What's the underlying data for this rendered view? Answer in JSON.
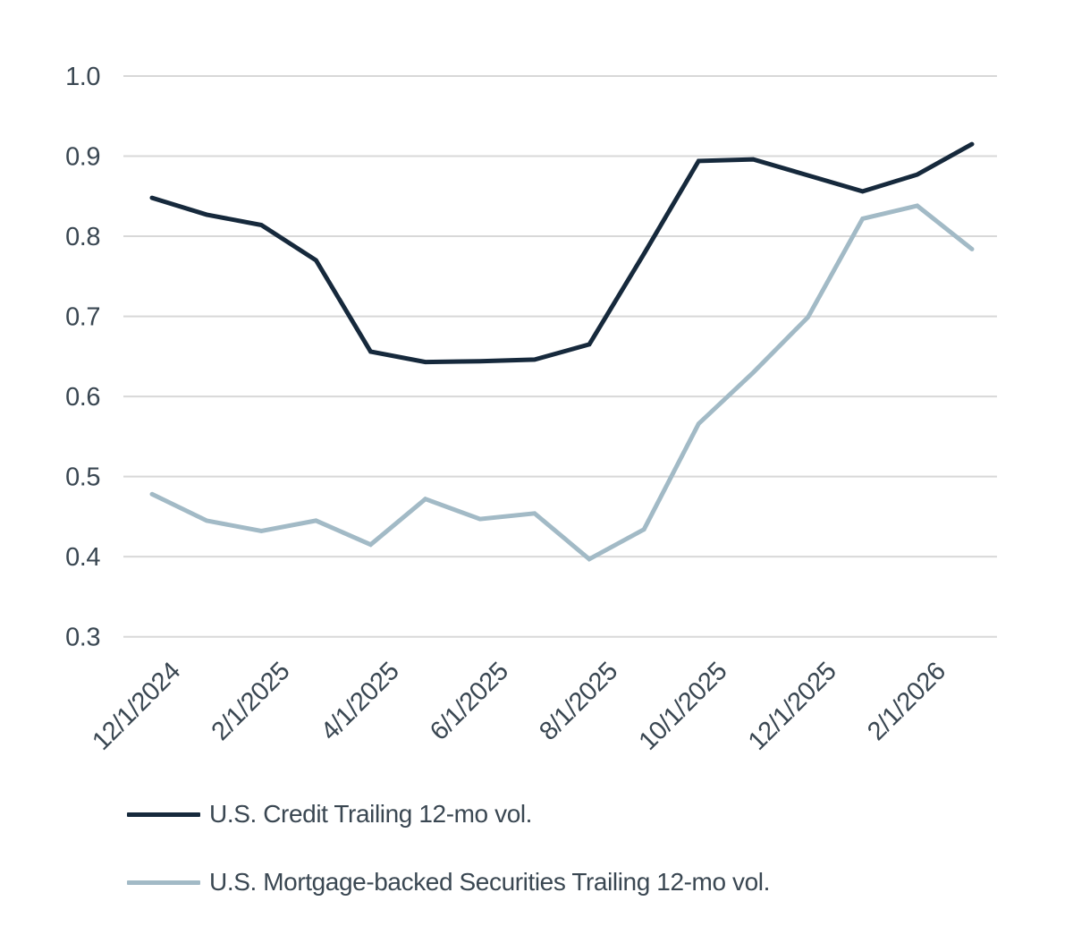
{
  "chart_data": {
    "type": "line",
    "title": "",
    "xlabel": "",
    "ylabel": "",
    "categories": [
      "12/1/2024",
      "1/1/2025",
      "2/1/2025",
      "3/1/2025",
      "4/1/2025",
      "5/1/2025",
      "6/1/2025",
      "7/1/2025",
      "8/1/2025",
      "9/1/2025",
      "10/1/2025",
      "11/1/2025",
      "12/1/2025",
      "1/1/2026",
      "2/1/2026",
      "3/1/2026"
    ],
    "series": [
      {
        "name": "U.S. Credit Trailing 12-mo vol.",
        "color": "#16293C",
        "values": [
          0.848,
          0.827,
          0.814,
          0.77,
          0.656,
          0.643,
          0.644,
          0.646,
          0.665,
          0.778,
          0.894,
          0.896,
          0.876,
          0.856,
          0.877,
          0.915
        ]
      },
      {
        "name": "U.S. Mortgage-backed Securities Trailing 12-mo vol.",
        "color": "#A2BAC6",
        "values": [
          0.478,
          0.445,
          0.432,
          0.445,
          0.415,
          0.472,
          0.447,
          0.454,
          0.397,
          0.434,
          0.566,
          0.63,
          0.699,
          0.822,
          0.838,
          0.784
        ]
      }
    ],
    "x_tick_indices": [
      0,
      2,
      4,
      6,
      8,
      10,
      12,
      14
    ],
    "x_tick_labels": [
      "12/1/2024",
      "2/1/2025",
      "4/1/2025",
      "6/1/2025",
      "8/1/2025",
      "10/1/2025",
      "12/1/2025",
      "2/1/2026"
    ],
    "y_ticks": [
      "1.0",
      "0.9",
      "0.8",
      "0.7",
      "0.6",
      "0.5",
      "0.4",
      "0.3"
    ],
    "y_tick_values": [
      1.0,
      0.9,
      0.8,
      0.7,
      0.6,
      0.5,
      0.4,
      0.3
    ],
    "ylim": [
      0.3,
      1.0
    ],
    "grid": "horizontal",
    "legend_position": "bottom-left",
    "colors": {
      "gridline": "#D8D8D8",
      "axis_text": "#3A4752",
      "background": "#FFFFFF"
    }
  }
}
